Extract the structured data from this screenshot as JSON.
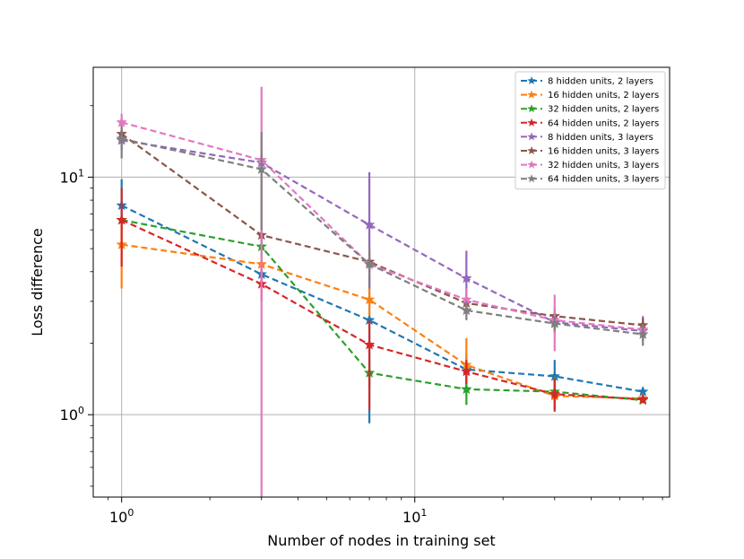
{
  "chart_data": {
    "type": "line",
    "title": "",
    "xlabel": "Number of nodes in training set",
    "ylabel": "Loss difference",
    "xscale": "log",
    "yscale": "log",
    "xlim": [
      0.8,
      74
    ],
    "ylim": [
      0.45,
      29
    ],
    "grid": true,
    "legend_position": "top-right",
    "x_ticks": [
      {
        "value": 1,
        "base": "10",
        "exp": "0"
      },
      {
        "value": 10,
        "base": "10",
        "exp": "1"
      }
    ],
    "y_ticks": [
      {
        "value": 1,
        "base": "10",
        "exp": "0"
      },
      {
        "value": 10,
        "base": "10",
        "exp": "1"
      }
    ],
    "x": [
      1,
      3,
      7,
      15,
      30,
      60
    ],
    "series": [
      {
        "name": "8 hidden units, 2 layers",
        "color": "#1f77b4",
        "values": [
          7.6,
          3.9,
          2.5,
          1.55,
          1.45,
          1.25
        ],
        "err_low": [
          6.0,
          3.5,
          0.92,
          1.35,
          1.25,
          1.2
        ],
        "err_high": [
          9.8,
          4.3,
          3.8,
          1.8,
          1.7,
          1.3
        ]
      },
      {
        "name": "16 hidden units, 2 layers",
        "color": "#ff7f0e",
        "values": [
          5.2,
          4.3,
          3.05,
          1.62,
          1.2,
          1.17
        ],
        "err_low": [
          3.4,
          3.9,
          2.6,
          1.3,
          1.1,
          1.13
        ],
        "err_high": [
          6.8,
          4.7,
          3.5,
          2.1,
          1.3,
          1.21
        ]
      },
      {
        "name": "32 hidden units, 2 layers",
        "color": "#2ca02c",
        "values": [
          6.6,
          5.1,
          1.5,
          1.28,
          1.25,
          1.15
        ],
        "err_low": [
          6.2,
          4.7,
          1.3,
          1.1,
          1.05,
          1.12
        ],
        "err_high": [
          7.0,
          5.5,
          1.7,
          1.45,
          1.45,
          1.18
        ]
      },
      {
        "name": "64 hidden units, 2 layers",
        "color": "#d62728",
        "values": [
          6.6,
          3.55,
          1.97,
          1.52,
          1.22,
          1.16
        ],
        "err_low": [
          4.2,
          3.0,
          1.05,
          1.35,
          1.03,
          1.12
        ],
        "err_high": [
          9.0,
          4.2,
          2.5,
          1.7,
          1.42,
          1.2
        ]
      },
      {
        "name": "8 hidden units, 3 layers",
        "color": "#9467bd",
        "values": [
          14.3,
          11.5,
          6.3,
          3.75,
          2.45,
          2.25
        ],
        "err_low": [
          13.0,
          10.5,
          3.4,
          2.9,
          2.2,
          2.05
        ],
        "err_high": [
          15.5,
          12.5,
          10.5,
          4.9,
          2.7,
          2.6
        ]
      },
      {
        "name": "16 hidden units, 3 layers",
        "color": "#8c564b",
        "values": [
          15.2,
          5.7,
          4.4,
          2.95,
          2.6,
          2.38
        ],
        "err_low": [
          14.5,
          5.3,
          4.0,
          2.7,
          2.4,
          2.2
        ],
        "err_high": [
          16.0,
          6.1,
          4.8,
          3.2,
          2.8,
          2.55
        ]
      },
      {
        "name": "32 hidden units, 3 layers",
        "color": "#e377c2",
        "values": [
          17.0,
          11.8,
          4.3,
          3.05,
          2.5,
          2.28
        ],
        "err_low": [
          15.5,
          0.45,
          3.6,
          2.7,
          1.85,
          2.15
        ],
        "err_high": [
          18.5,
          24.0,
          5.0,
          3.4,
          3.2,
          2.4
        ]
      },
      {
        "name": "64 hidden units, 3 layers",
        "color": "#7f7f7f",
        "values": [
          14.5,
          10.8,
          4.3,
          2.75,
          2.42,
          2.18
        ],
        "err_low": [
          12.0,
          6.0,
          3.5,
          2.5,
          2.25,
          1.95
        ],
        "err_high": [
          16.5,
          15.5,
          5.1,
          3.0,
          2.6,
          2.4
        ]
      }
    ]
  }
}
